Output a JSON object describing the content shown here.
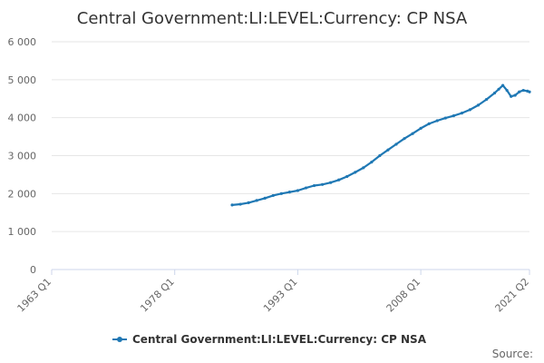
{
  "chart_data": {
    "type": "line",
    "title": "Central Government:LI:LEVEL:Currency: CP NSA",
    "xlabel": "",
    "ylabel": "",
    "x_ticks": [
      "1963 Q1",
      "1978 Q1",
      "1993 Q1",
      "2008 Q1",
      "2021 Q2"
    ],
    "y_ticks": [
      "0",
      "1 000",
      "2 000",
      "3 000",
      "4 000",
      "5 000",
      "6 000"
    ],
    "ylim": [
      0,
      6000
    ],
    "grid": true,
    "legend_position": "bottom",
    "series": [
      {
        "name": "Central Government:LI:LEVEL:Currency: CP NSA",
        "color": "#1f78b4",
        "points": [
          [
            "1985 Q1",
            1700
          ],
          [
            "1986 Q1",
            1720
          ],
          [
            "1987 Q1",
            1760
          ],
          [
            "1988 Q1",
            1820
          ],
          [
            "1989 Q1",
            1880
          ],
          [
            "1990 Q1",
            1950
          ],
          [
            "1991 Q1",
            2000
          ],
          [
            "1992 Q1",
            2040
          ],
          [
            "1993 Q1",
            2080
          ],
          [
            "1994 Q1",
            2150
          ],
          [
            "1995 Q1",
            2210
          ],
          [
            "1996 Q1",
            2240
          ],
          [
            "1997 Q1",
            2290
          ],
          [
            "1998 Q1",
            2360
          ],
          [
            "1999 Q1",
            2450
          ],
          [
            "2000 Q1",
            2560
          ],
          [
            "2001 Q1",
            2680
          ],
          [
            "2002 Q1",
            2830
          ],
          [
            "2003 Q1",
            3000
          ],
          [
            "2004 Q1",
            3150
          ],
          [
            "2005 Q1",
            3300
          ],
          [
            "2006 Q1",
            3450
          ],
          [
            "2007 Q1",
            3580
          ],
          [
            "2008 Q1",
            3720
          ],
          [
            "2009 Q1",
            3840
          ],
          [
            "2010 Q1",
            3920
          ],
          [
            "2011 Q1",
            3990
          ],
          [
            "2012 Q1",
            4050
          ],
          [
            "2013 Q1",
            4120
          ],
          [
            "2014 Q1",
            4210
          ],
          [
            "2015 Q1",
            4330
          ],
          [
            "2016 Q1",
            4480
          ],
          [
            "2017 Q1",
            4650
          ],
          [
            "2017 Q3",
            4750
          ],
          [
            "2018 Q1",
            4850
          ],
          [
            "2018 Q3",
            4720
          ],
          [
            "2019 Q1",
            4560
          ],
          [
            "2019 Q3",
            4590
          ],
          [
            "2020 Q1",
            4680
          ],
          [
            "2020 Q3",
            4720
          ],
          [
            "2021 Q1",
            4700
          ],
          [
            "2021 Q2",
            4680
          ]
        ]
      }
    ]
  },
  "source_label": "Source:"
}
